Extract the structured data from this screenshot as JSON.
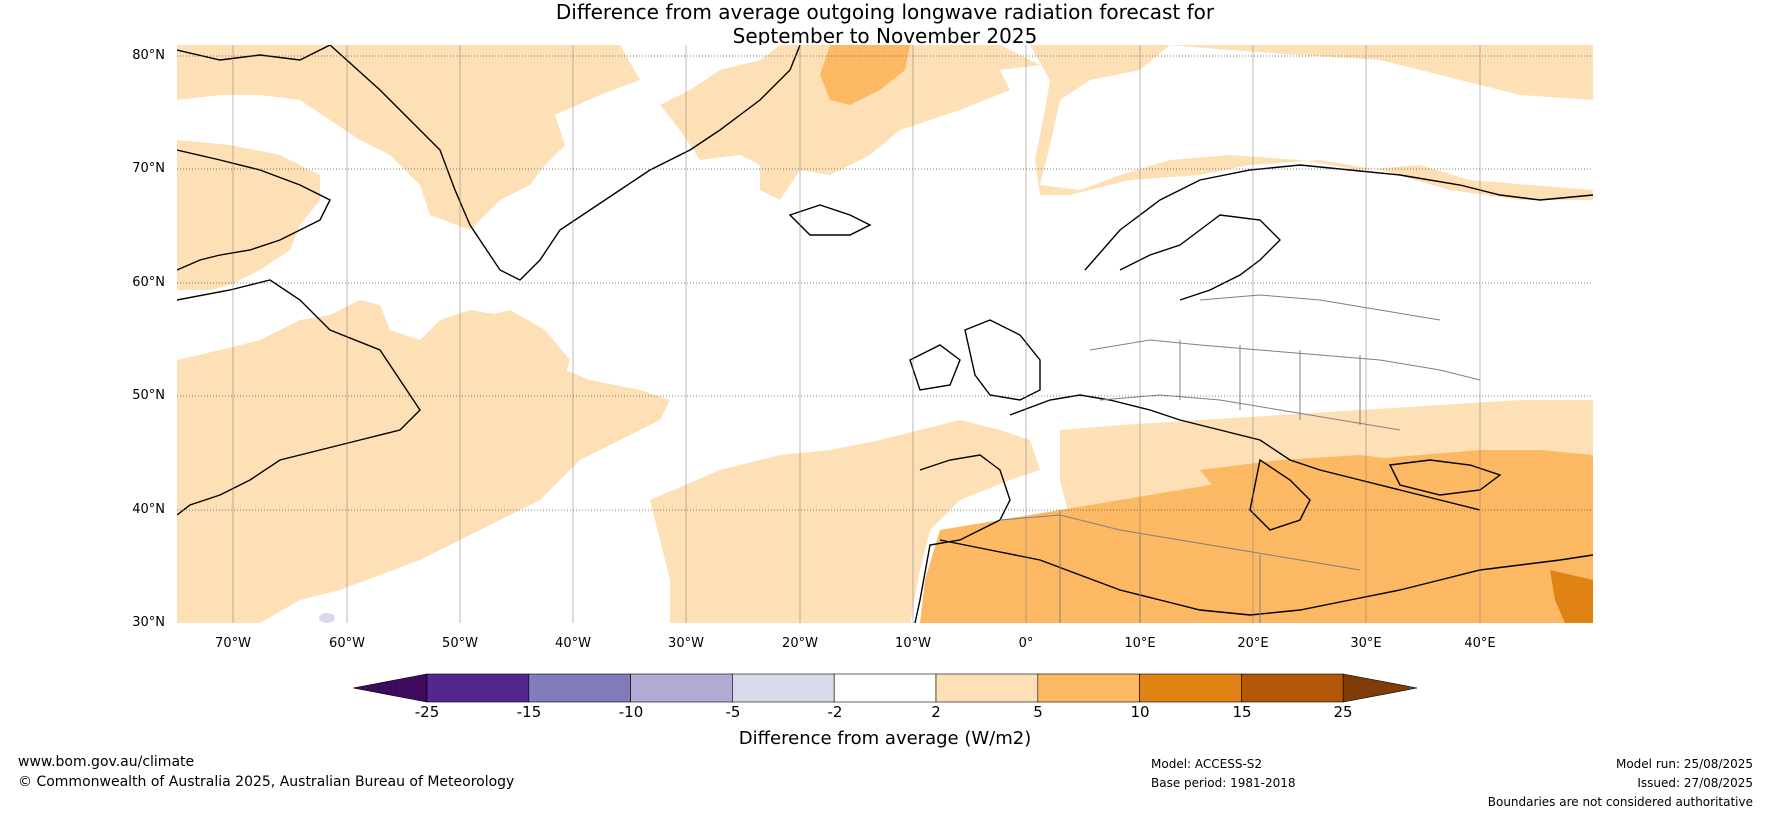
{
  "title": {
    "line1": "Difference from average outgoing longwave radiation forecast for",
    "line2": "September to November 2025"
  },
  "map": {
    "lat_labels": [
      "80°N",
      "70°N",
      "60°N",
      "50°N",
      "40°N",
      "30°N"
    ],
    "lon_labels": [
      "70°W",
      "60°W",
      "50°W",
      "40°W",
      "30°W",
      "20°W",
      "10°W",
      "0°",
      "10°E",
      "20°E",
      "30°E",
      "40°E"
    ],
    "lat_range": [
      30,
      81
    ],
    "lon_range": [
      -75,
      50
    ],
    "ocean_color": "#ffffff",
    "coast_color": "#000000",
    "border_color": "#808080",
    "grid_style": "dotted"
  },
  "colorbar": {
    "label": "Difference from average (W/m2)",
    "ticks": [
      "-25",
      "-15",
      "-10",
      "-5",
      "-2",
      "2",
      "5",
      "10",
      "15",
      "25"
    ],
    "colors": [
      "#3f0a5c",
      "#54278f",
      "#807dba",
      "#b1aad3",
      "#d9d9ec",
      "#ffffff",
      "#fee0b6",
      "#fdb863",
      "#e08214",
      "#b35806",
      "#7f3b08"
    ]
  },
  "footer": {
    "website": "www.bom.gov.au/climate",
    "copyright": "© Commonwealth of Australia 2025, Australian Bureau of Meteorology",
    "model": "Model: ACCESS-S2",
    "base_period": "Base period: 1981-2018",
    "model_run": "Model run: 25/08/2025",
    "issued": "Issued: 27/08/2025",
    "disclaimer": "Boundaries are not considered authoritative"
  }
}
